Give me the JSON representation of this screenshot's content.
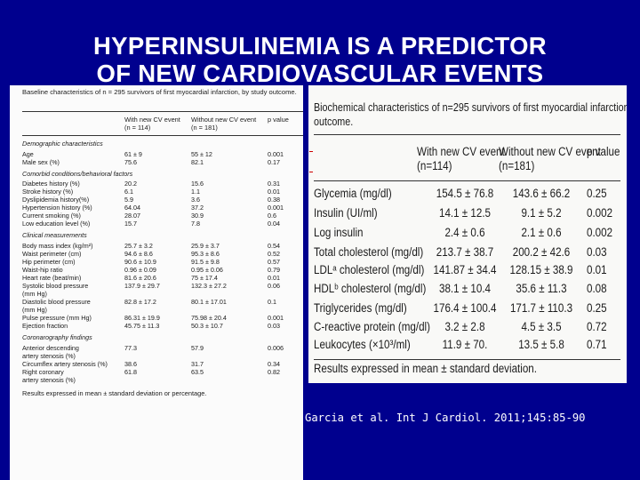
{
  "title": {
    "line1": "HYPERINSULINEMIA IS A PREDICTOR",
    "line2": "OF  NEW CARDIOVASCULAR EVENTS"
  },
  "left_table": {
    "caption": "Baseline characteristics of  n = 295 survivors of first myocardial infarction, by study outcome.",
    "headers": {
      "col1_line1": "With new CV event",
      "col1_line2": "(n = 114)",
      "col2_line1": "Without new CV event",
      "col2_line2": "(n = 181)",
      "col3": "p value"
    },
    "rows": [
      {
        "type": "section",
        "label": "Demographic characteristics"
      },
      {
        "label": "Age",
        "a": "61 ± 9",
        "b": "55 ± 12",
        "p": "0.001"
      },
      {
        "label": "Male sex (%)",
        "a": "75.6",
        "b": "82.1",
        "p": "0.17"
      },
      {
        "type": "section",
        "label": "Comorbid conditions/behavioral factors"
      },
      {
        "label": "Diabetes history (%)",
        "a": "20.2",
        "b": "15.6",
        "p": "0.31"
      },
      {
        "label": "Stroke history (%)",
        "a": "6.1",
        "b": "1.1",
        "p": "0.01"
      },
      {
        "label": "Dyslipidemia history(%)",
        "a": "5.9",
        "b": "3.6",
        "p": "0.38"
      },
      {
        "label": "Hypertension history (%)",
        "a": "64.04",
        "b": "37.2",
        "p": "0.001"
      },
      {
        "label": "Current smoking (%)",
        "a": "28.07",
        "b": "30.9",
        "p": "0.6"
      },
      {
        "label": "Low education level (%)",
        "a": "15.7",
        "b": "7.8",
        "p": "0.04"
      },
      {
        "type": "section",
        "label": "Clinical measurements"
      },
      {
        "label": "Body mass index (kg/m²)",
        "a": "25.7 ± 3.2",
        "b": "25.9 ± 3.7",
        "p": "0.54"
      },
      {
        "label": "Waist perimeter (cm)",
        "a": "94.6 ± 8.6",
        "b": "95.3 ± 8.6",
        "p": "0.52"
      },
      {
        "label": "Hip perimeter (cm)",
        "a": "90.6 ± 10.9",
        "b": "91.5 ± 9.8",
        "p": "0.57"
      },
      {
        "label": "Waist-hip ratio",
        "a": "0.96 ± 0.09",
        "b": "0.95 ± 0.06",
        "p": "0.79"
      },
      {
        "label": "Heart rate (beat/min)",
        "a": "81.6 ± 20.6",
        "b": "75 ± 17.4",
        "p": "0.01"
      },
      {
        "label": "Systolic blood pressure",
        "a": "137.9 ± 29.7",
        "b": "132.3 ± 27.2",
        "p": "0.06"
      },
      {
        "label": "  (mm Hg)",
        "a": "",
        "b": "",
        "p": ""
      },
      {
        "label": "Diastolic blood pressure",
        "a": "82.8 ± 17.2",
        "b": "80.1 ± 17.01",
        "p": "0.1"
      },
      {
        "label": "  (mm Hg)",
        "a": "",
        "b": "",
        "p": ""
      },
      {
        "label": "Pulse pressure (mm Hg)",
        "a": "86.31 ± 19.9",
        "b": "75.98 ± 20.4",
        "p": "0.001"
      },
      {
        "label": "Ejection fraction",
        "a": "45.75 ± 11.3",
        "b": "50.3 ± 10.7",
        "p": "0.03"
      },
      {
        "type": "section",
        "label": "Coronarography findings"
      },
      {
        "label": "Anterior descending",
        "a": "77.3",
        "b": "57.9",
        "p": "0.006"
      },
      {
        "label": "  artery stenosis (%)",
        "a": "",
        "b": "",
        "p": ""
      },
      {
        "label": "Circumflex artery stenosis (%)",
        "a": "38.6",
        "b": "31.7",
        "p": "0.34"
      },
      {
        "label": "Right coronary",
        "a": "61.8",
        "b": "63.5",
        "p": "0.82"
      },
      {
        "label": "  artery stenosis (%)",
        "a": "",
        "b": "",
        "p": ""
      }
    ],
    "footer": "Results expressed in mean ± standard deviation or percentage."
  },
  "right_table": {
    "caption_line1": "Biochemical characteristics of n=295 survivors of first myocardial infarction, by study",
    "caption_line2": "outcome.",
    "headers": {
      "col1_line1": "With new CV event",
      "col1_line2": "(n=114)",
      "col2_line1": "Without new CV event",
      "col2_line2": "(n=181)",
      "col3": "p value"
    },
    "rows": [
      {
        "label": "Glycemia (mg/dl)",
        "a": "154.5 ± 76.8",
        "b": "143.6 ± 66.2",
        "p": "0.25"
      },
      {
        "label": "Insulin (UI/ml)",
        "a": "14.1 ± 12.5",
        "b": "9.1 ± 5.2",
        "p": "0.002"
      },
      {
        "label": "Log insulin",
        "a": "2.4 ± 0.6",
        "b": "2.1 ± 0.6",
        "p": "0.002"
      },
      {
        "label": "Total cholesterol (mg/dl)",
        "a": "213.7 ± 38.7",
        "b": "200.2 ± 42.6",
        "p": "0.03"
      },
      {
        "label": "LDLᵃ cholesterol (mg/dl)",
        "a": "141.87 ± 34.4",
        "b": "128.15 ± 38.9",
        "p": "0.01"
      },
      {
        "label": "HDLᵇ cholesterol (mg/dl)",
        "a": "38.1 ± 10.4",
        "b": "35.6 ± 11.3",
        "p": "0.08"
      },
      {
        "label": "Triglycerides (mg/dl)",
        "a": "176.4 ± 100.4",
        "b": "171.7 ± 110.3",
        "p": "0.25"
      },
      {
        "label": "C-reactive protein (mg/dl)",
        "a": "3.2 ± 2.8",
        "b": "4.5 ± 3.5",
        "p": "0.72"
      },
      {
        "label": "Leukocytes (×10³/ml)",
        "a": "11.9 ± 70.",
        "b": "13.5 ± 5.8",
        "p": "0.71"
      }
    ],
    "footer": "Results expressed in mean ± standard deviation."
  },
  "citation": "Garcia et al. Int J Cardiol. 2011;145:85-90"
}
